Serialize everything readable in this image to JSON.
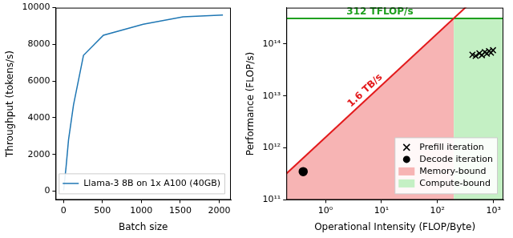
{
  "chart_data": [
    {
      "type": "line",
      "x_label": "Batch size",
      "y_label": "Throughput (tokens/s)",
      "xlim": [
        -102,
        2150
      ],
      "xticks": [
        0,
        500,
        1000,
        1500,
        2000
      ],
      "ylim": [
        -480,
        10000
      ],
      "yticks": [
        0,
        2000,
        4000,
        6000,
        8000,
        10000
      ],
      "grid": false,
      "legend": "lower right",
      "series": [
        {
          "name": "Llama-3 8B on 1x A100 (40GB)",
          "color": "#1f77b4",
          "x": [
            1,
            32,
            64,
            128,
            256,
            512,
            1024,
            1536,
            2048
          ],
          "values": [
            40,
            1300,
            2800,
            4700,
            7400,
            8500,
            9100,
            9500,
            9600
          ]
        }
      ]
    },
    {
      "type": "scatter",
      "x_label": "Operational Intensity (FLOP/Byte)",
      "y_label": "Performance (FLOP/s)",
      "log": true,
      "xlim": [
        0.2,
        1500
      ],
      "xticks": [
        {
          "value": 1,
          "label": "10⁰"
        },
        {
          "value": 10,
          "label": "10¹"
        },
        {
          "value": 100,
          "label": "10²"
        },
        {
          "value": 1000,
          "label": "10³"
        }
      ],
      "ylim": [
        100000000000.0,
        500000000000000.0
      ],
      "yticks": [
        {
          "value": 100000000000.0,
          "label": "10¹¹"
        },
        {
          "value": 1000000000000.0,
          "label": "10¹²"
        },
        {
          "value": 10000000000000.0,
          "label": "10¹³"
        },
        {
          "value": 100000000000000.0,
          "label": "10¹⁴"
        }
      ],
      "grid": false,
      "legend": "lower right",
      "roofline": {
        "bandwidth": 1600000000000.0,
        "bandwidth_label": "1.6 TB/s",
        "bandwidth_color": "#e31a1c",
        "peak": 312000000000000.0,
        "peak_label": "312 TFLOP/s",
        "peak_color": "#1fa01f"
      },
      "regions": [
        {
          "name": "Memory-bound",
          "color": "#f7b4b4"
        },
        {
          "name": "Compute-bound",
          "color": "#c4f0c4"
        }
      ],
      "series": [
        {
          "name": "Prefill iteration",
          "color": "#000000",
          "marker": "x",
          "x": [
            420,
            480,
            560,
            620,
            700,
            760,
            830,
            900,
            980
          ],
          "values": [
            62000000000000.0,
            59000000000000.0,
            66000000000000.0,
            61000000000000.0,
            70000000000000.0,
            65000000000000.0,
            73000000000000.0,
            68000000000000.0,
            76000000000000.0
          ]
        },
        {
          "name": "Decode iteration",
          "color": "#000000",
          "marker": "circle",
          "x": [
            0.4
          ],
          "values": [
            350000000000.0
          ]
        }
      ]
    }
  ]
}
